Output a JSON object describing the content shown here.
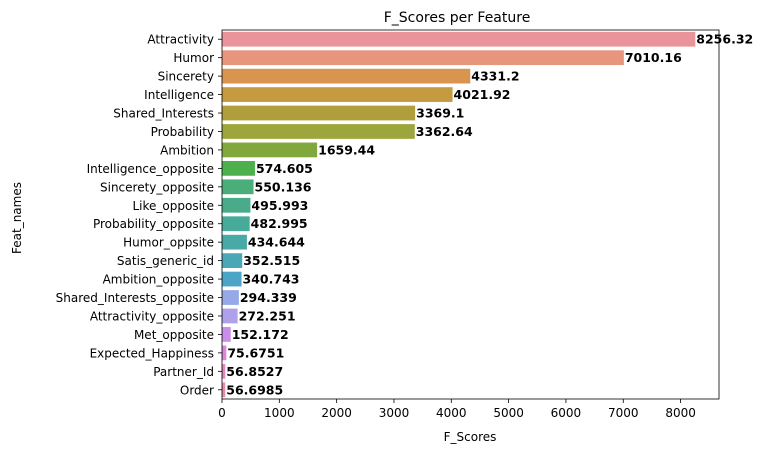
{
  "chart_data": {
    "type": "bar",
    "orientation": "horizontal",
    "title": "F_Scores per Feature",
    "xlabel": "F_Scores",
    "ylabel": "Feat_names",
    "xlim": [
      0,
      8670
    ],
    "xticks": [
      0,
      1000,
      2000,
      3000,
      4000,
      5000,
      6000,
      7000,
      8000
    ],
    "grid": false,
    "categories": [
      "Attractivity",
      "Humor",
      "Sincerety",
      "Intelligence",
      "Shared_Interests",
      "Probability",
      "Ambition",
      "Intelligence_opposite",
      "Sincerety_opposite",
      "Like_opposite",
      "Probability_opposite",
      "Humor_oppsite",
      "Satis_generic_id",
      "Ambition_opposite",
      "Shared_Interests_opposite",
      "Attractivity_opposite",
      "Met_opposite",
      "Expected_Happiness",
      "Partner_Id",
      "Order"
    ],
    "values": [
      8256.32,
      7010.16,
      4331.2,
      4021.92,
      3369.1,
      3362.64,
      1659.44,
      574.605,
      550.136,
      495.993,
      482.995,
      434.644,
      352.515,
      340.743,
      294.339,
      272.251,
      152.172,
      75.6751,
      56.8527,
      56.6985
    ],
    "value_labels": [
      "8256.32",
      "7010.16",
      "4331.2",
      "4021.92",
      "3369.1",
      "3362.64",
      "1659.44",
      "574.605",
      "550.136",
      "495.993",
      "482.995",
      "434.644",
      "352.515",
      "340.743",
      "294.339",
      "272.251",
      "152.172",
      "75.6751",
      "56.8527",
      "56.6985"
    ],
    "colors": [
      "#e9949a",
      "#e8957d",
      "#d9954f",
      "#c69a3f",
      "#b09d3c",
      "#9da63c",
      "#80a83d",
      "#4db04c",
      "#4bae7a",
      "#4aab8b",
      "#48aa98",
      "#49a9a7",
      "#4aa7b6",
      "#4ca4c6",
      "#96a9e6",
      "#afa0ec",
      "#c98ee8",
      "#dd86d8",
      "#e389c0",
      "#e88cac"
    ]
  }
}
